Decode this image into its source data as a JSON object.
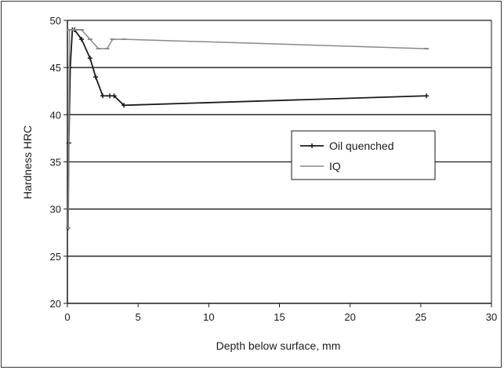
{
  "chart_data": {
    "type": "line",
    "title": "",
    "xlabel": "Depth below surface, mm",
    "ylabel": "Hardness HRC",
    "xlim": [
      0,
      30
    ],
    "ylim": [
      20,
      50
    ],
    "xticks": [
      0,
      5,
      10,
      15,
      20,
      25,
      30
    ],
    "yticks": [
      20,
      25,
      30,
      35,
      40,
      45,
      50
    ],
    "grid": "horizontal",
    "legend_position": "right-center",
    "series": [
      {
        "name": "Oil quenched",
        "color": "#1a1a1a",
        "marker": "plus",
        "x": [
          0.05,
          0.1,
          0.2,
          0.35,
          0.5,
          1.0,
          1.6,
          2.0,
          2.5,
          3.0,
          3.3,
          4.0,
          25.4
        ],
        "y": [
          28,
          37,
          45,
          49,
          49,
          48,
          46,
          44,
          42,
          42,
          42,
          41,
          42
        ]
      },
      {
        "name": "IQ",
        "color": "#8a8a8a",
        "marker": "dash",
        "x": [
          0.05,
          0.15,
          0.3,
          0.6,
          1.0,
          1.6,
          2.2,
          2.8,
          3.2,
          4.0,
          25.4
        ],
        "y": [
          28,
          49,
          49,
          49,
          49,
          48,
          47,
          47,
          48,
          48,
          47
        ]
      }
    ]
  }
}
